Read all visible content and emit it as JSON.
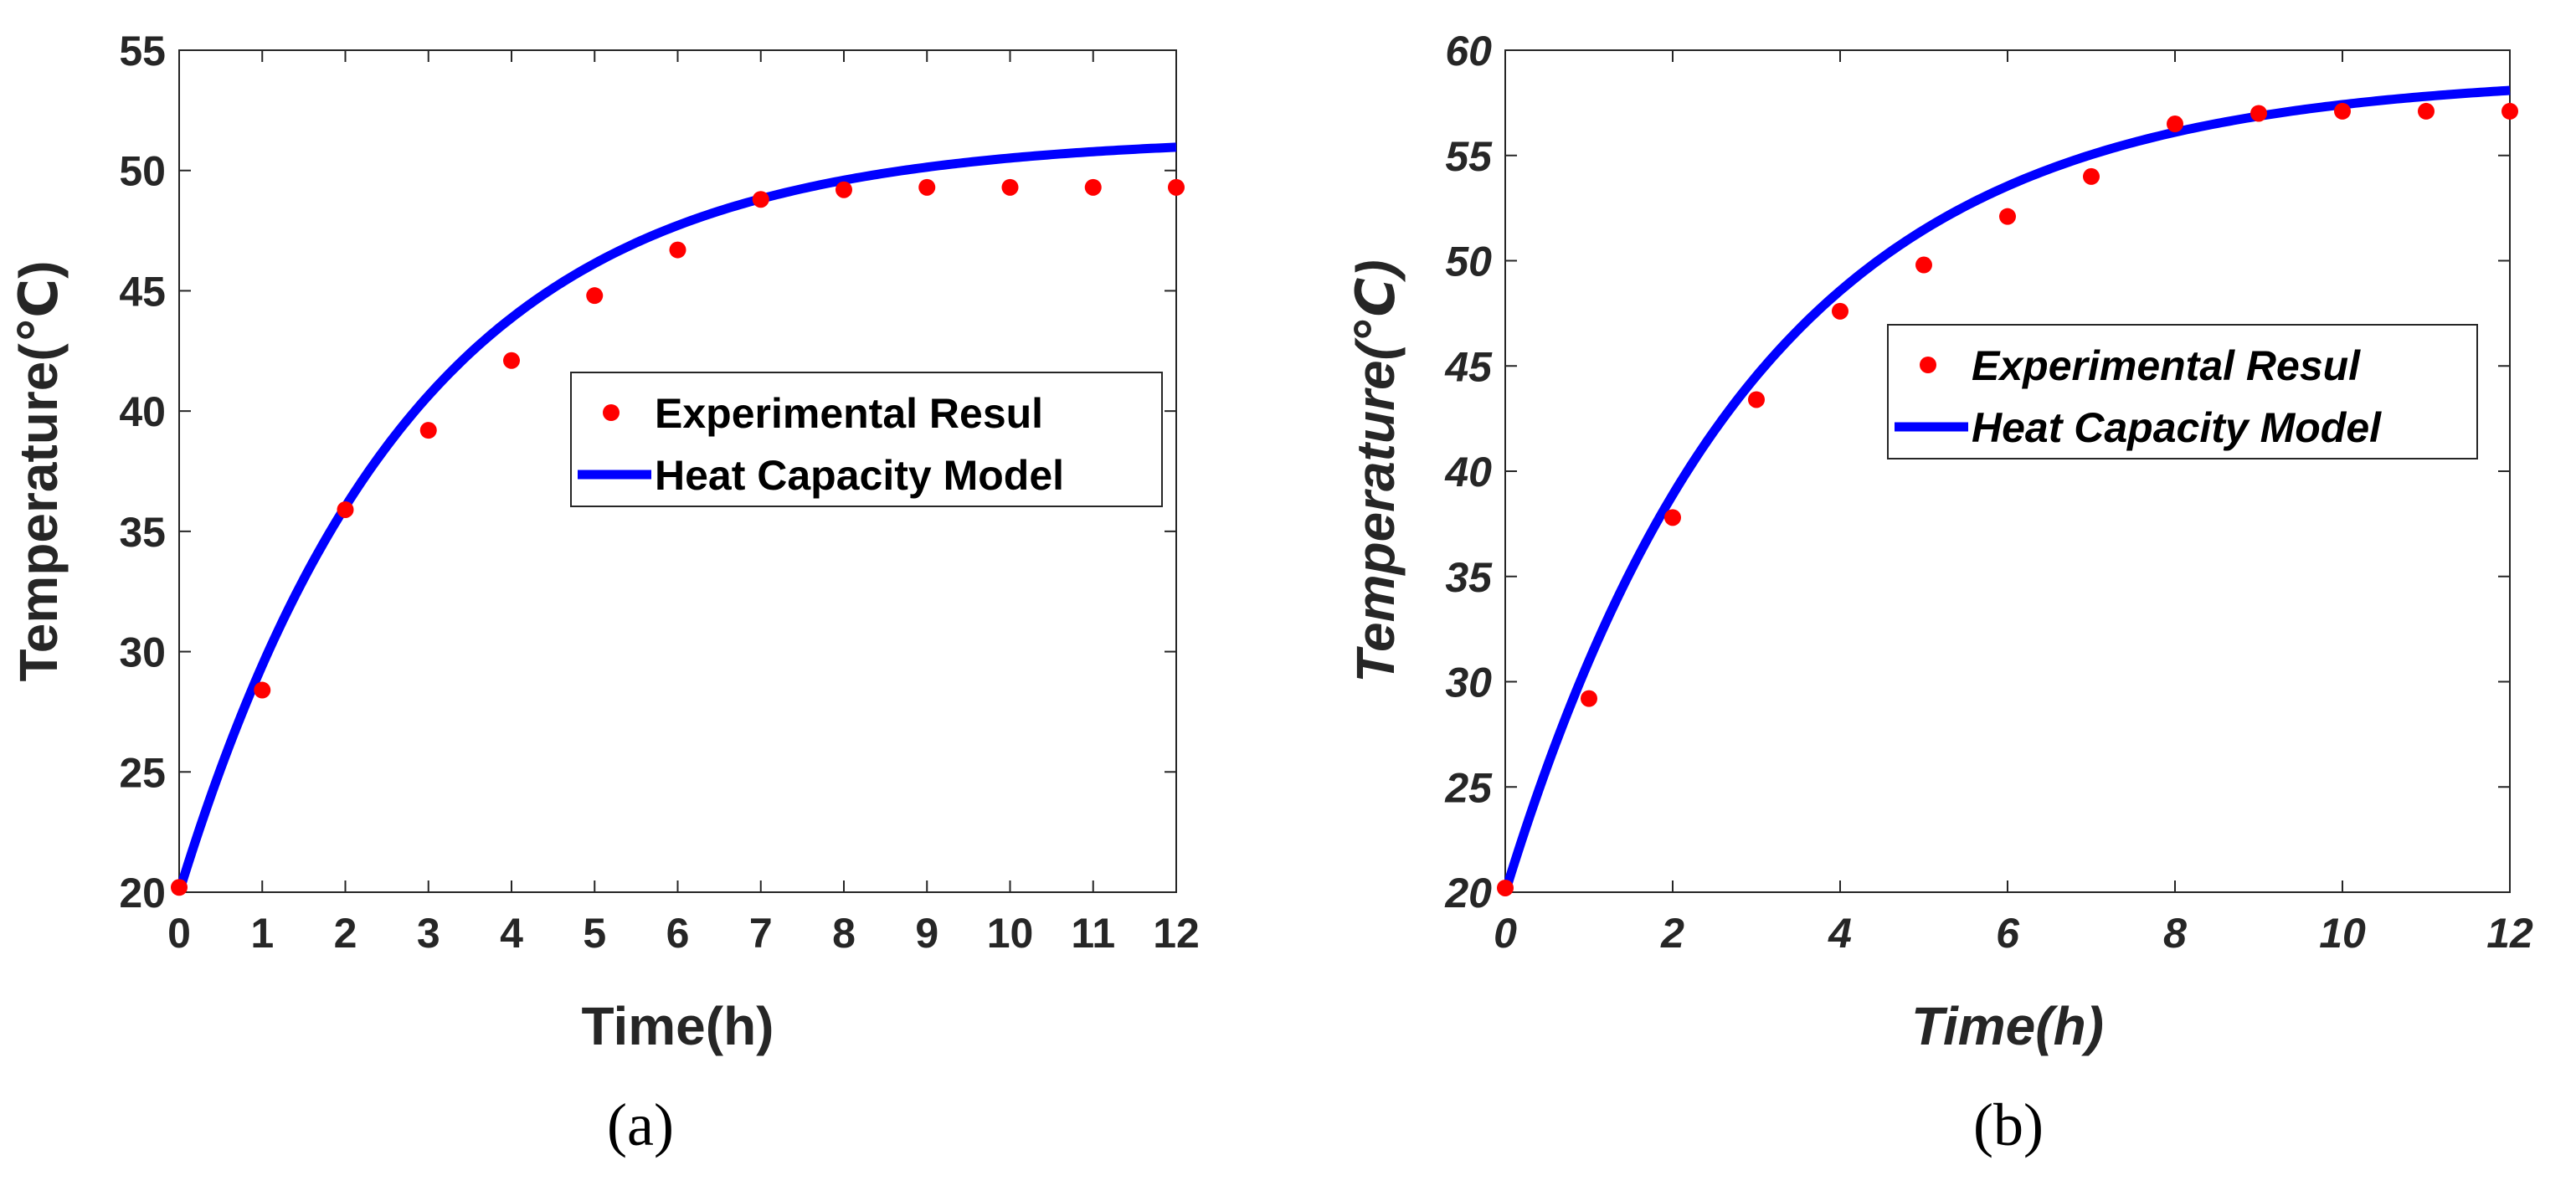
{
  "chart_data": [
    {
      "id": "a",
      "type": "line",
      "caption": "(a)",
      "title": "",
      "xlabel": "Time(h)",
      "ylabel": "Temperature(℃)",
      "xlim": [
        0,
        12
      ],
      "ylim": [
        20,
        55
      ],
      "xticks": [
        0,
        1,
        2,
        3,
        4,
        5,
        6,
        7,
        8,
        9,
        10,
        11,
        12
      ],
      "yticks": [
        20,
        25,
        30,
        35,
        40,
        45,
        50,
        55
      ],
      "legend_position": "center-right",
      "grid": false,
      "series": [
        {
          "name": "Experimental Resul",
          "kind": "scatter",
          "color": "#ff0000",
          "x": [
            0,
            1,
            2,
            3,
            4,
            5,
            6,
            7,
            8,
            9,
            10,
            11,
            12
          ],
          "y": [
            20.2,
            28.4,
            35.9,
            39.2,
            42.1,
            44.8,
            46.7,
            48.8,
            49.2,
            49.3,
            49.3,
            49.3,
            49.3
          ]
        },
        {
          "name": "Heat Capacity Model",
          "kind": "line",
          "color": "#0000ff",
          "model": {
            "t0": 20.0,
            "tinf": 51.4,
            "tau": 2.8
          }
        }
      ]
    },
    {
      "id": "b",
      "type": "line",
      "caption": "(b)",
      "title": "",
      "xlabel": "Time(h)",
      "ylabel": "Temperature(℃)",
      "xlim": [
        0,
        12
      ],
      "ylim": [
        20,
        60
      ],
      "xticks": [
        0,
        2,
        4,
        6,
        8,
        10,
        12
      ],
      "yticks": [
        20,
        25,
        30,
        35,
        40,
        45,
        50,
        55,
        60
      ],
      "legend_position": "center-right",
      "grid": false,
      "series": [
        {
          "name": "Experimental Resul",
          "kind": "scatter",
          "color": "#ff0000",
          "x": [
            0,
            1,
            2,
            3,
            4,
            5,
            6,
            7,
            8,
            9,
            10,
            11,
            12
          ],
          "y": [
            20.2,
            29.2,
            37.8,
            43.4,
            47.6,
            49.8,
            52.1,
            54.0,
            56.5,
            57.0,
            57.1,
            57.1,
            57.1
          ]
        },
        {
          "name": "Heat Capacity Model",
          "kind": "line",
          "color": "#0000ff",
          "model": {
            "t0": 20.0,
            "tinf": 58.8,
            "tau": 3.0
          }
        }
      ]
    }
  ]
}
